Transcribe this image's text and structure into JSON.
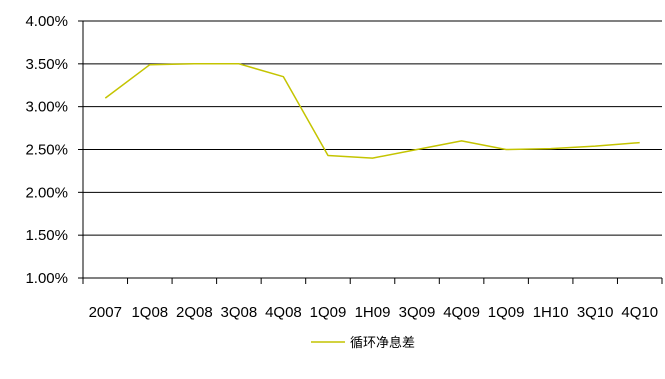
{
  "chart_data": {
    "type": "line",
    "categories": [
      "2007",
      "1Q08",
      "2Q08",
      "3Q08",
      "4Q08",
      "1Q09",
      "1H09",
      "3Q09",
      "4Q09",
      "1Q09",
      "1H10",
      "3Q10",
      "4Q10"
    ],
    "series": [
      {
        "name": "循环净息差",
        "values": [
          3.1,
          3.49,
          3.5,
          3.5,
          3.35,
          2.43,
          2.4,
          2.5,
          2.6,
          2.5,
          2.51,
          2.54,
          2.58
        ],
        "color": "#C4C400"
      }
    ],
    "title": "",
    "xlabel": "",
    "ylabel": "",
    "ylim": [
      1.0,
      4.0
    ],
    "yticks": [
      1.0,
      1.5,
      2.0,
      2.5,
      3.0,
      3.5,
      4.0
    ],
    "ytick_labels": [
      "1.00%",
      "1.50%",
      "2.00%",
      "2.50%",
      "3.00%",
      "3.50%",
      "4.00%"
    ],
    "grid": true,
    "legend": "bottom-center"
  }
}
